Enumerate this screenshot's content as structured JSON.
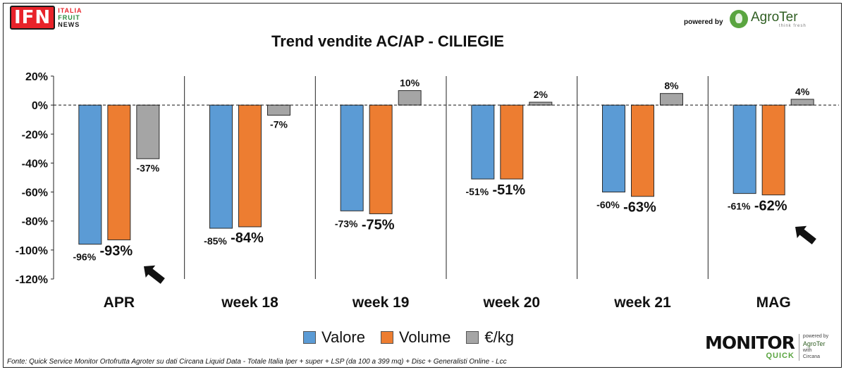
{
  "header": {
    "logo_ifn": "IFN",
    "logo_ifn_lines": [
      "ITALIA",
      "FRUIT",
      "NEWS"
    ],
    "powered_by": "powered by",
    "agroter_name": "AgroTer",
    "agroter_tagline": "think fresh"
  },
  "chart_data": {
    "type": "bar",
    "title": "Trend vendite AC/AP - CILIEGIE",
    "xlabel": "",
    "ylabel": "",
    "categories": [
      "APR",
      "week 18",
      "week 19",
      "week 20",
      "week 21",
      "MAG"
    ],
    "series": [
      {
        "name": "Valore",
        "values": [
          -96,
          -85,
          -73,
          -51,
          -60,
          -61
        ],
        "labels": [
          "-96%",
          "-85%",
          "-73%",
          "-51%",
          "-60%",
          "-61%"
        ]
      },
      {
        "name": "Volume",
        "values": [
          -93,
          -84,
          -75,
          -51,
          -63,
          -62
        ],
        "labels": [
          "-93%",
          "-84%",
          "-75%",
          "-51%",
          "-63%",
          "-62%"
        ]
      },
      {
        "name": "€/kg",
        "values": [
          -37,
          -7,
          10,
          2,
          8,
          4
        ],
        "labels": [
          "-37%",
          "-7%",
          "10%",
          "2%",
          "8%",
          "4%"
        ]
      }
    ],
    "colors": [
      "#5b9bd5",
      "#ed7d31",
      "#a5a5a5"
    ],
    "ylim": [
      -120,
      20
    ],
    "yticks": [
      20,
      0,
      -20,
      -40,
      -60,
      -80,
      -100,
      -120
    ],
    "ytick_labels": [
      "20%",
      "0%",
      "-20%",
      "-40%",
      "-60%",
      "-80%",
      "-100%",
      "-120%"
    ],
    "grid": false,
    "zero_line": "dashed",
    "legend_position": "bottom",
    "annotations": [
      "arrow near APR Volume",
      "arrow near MAG Volume"
    ]
  },
  "footer": {
    "source": "Fonte: Quick Service Monitor Ortofrutta Agroter su dati Circana Liquid Data - Totale Italia Iper + super + LSP (da 100 a 399 mq) + Disc + Generalisti Online - Lcc",
    "monitor_word": "MONITOR",
    "monitor_sub": "QUICK",
    "monitor_side": [
      "powered by",
      "AgroTer",
      "with",
      "Circana"
    ]
  }
}
